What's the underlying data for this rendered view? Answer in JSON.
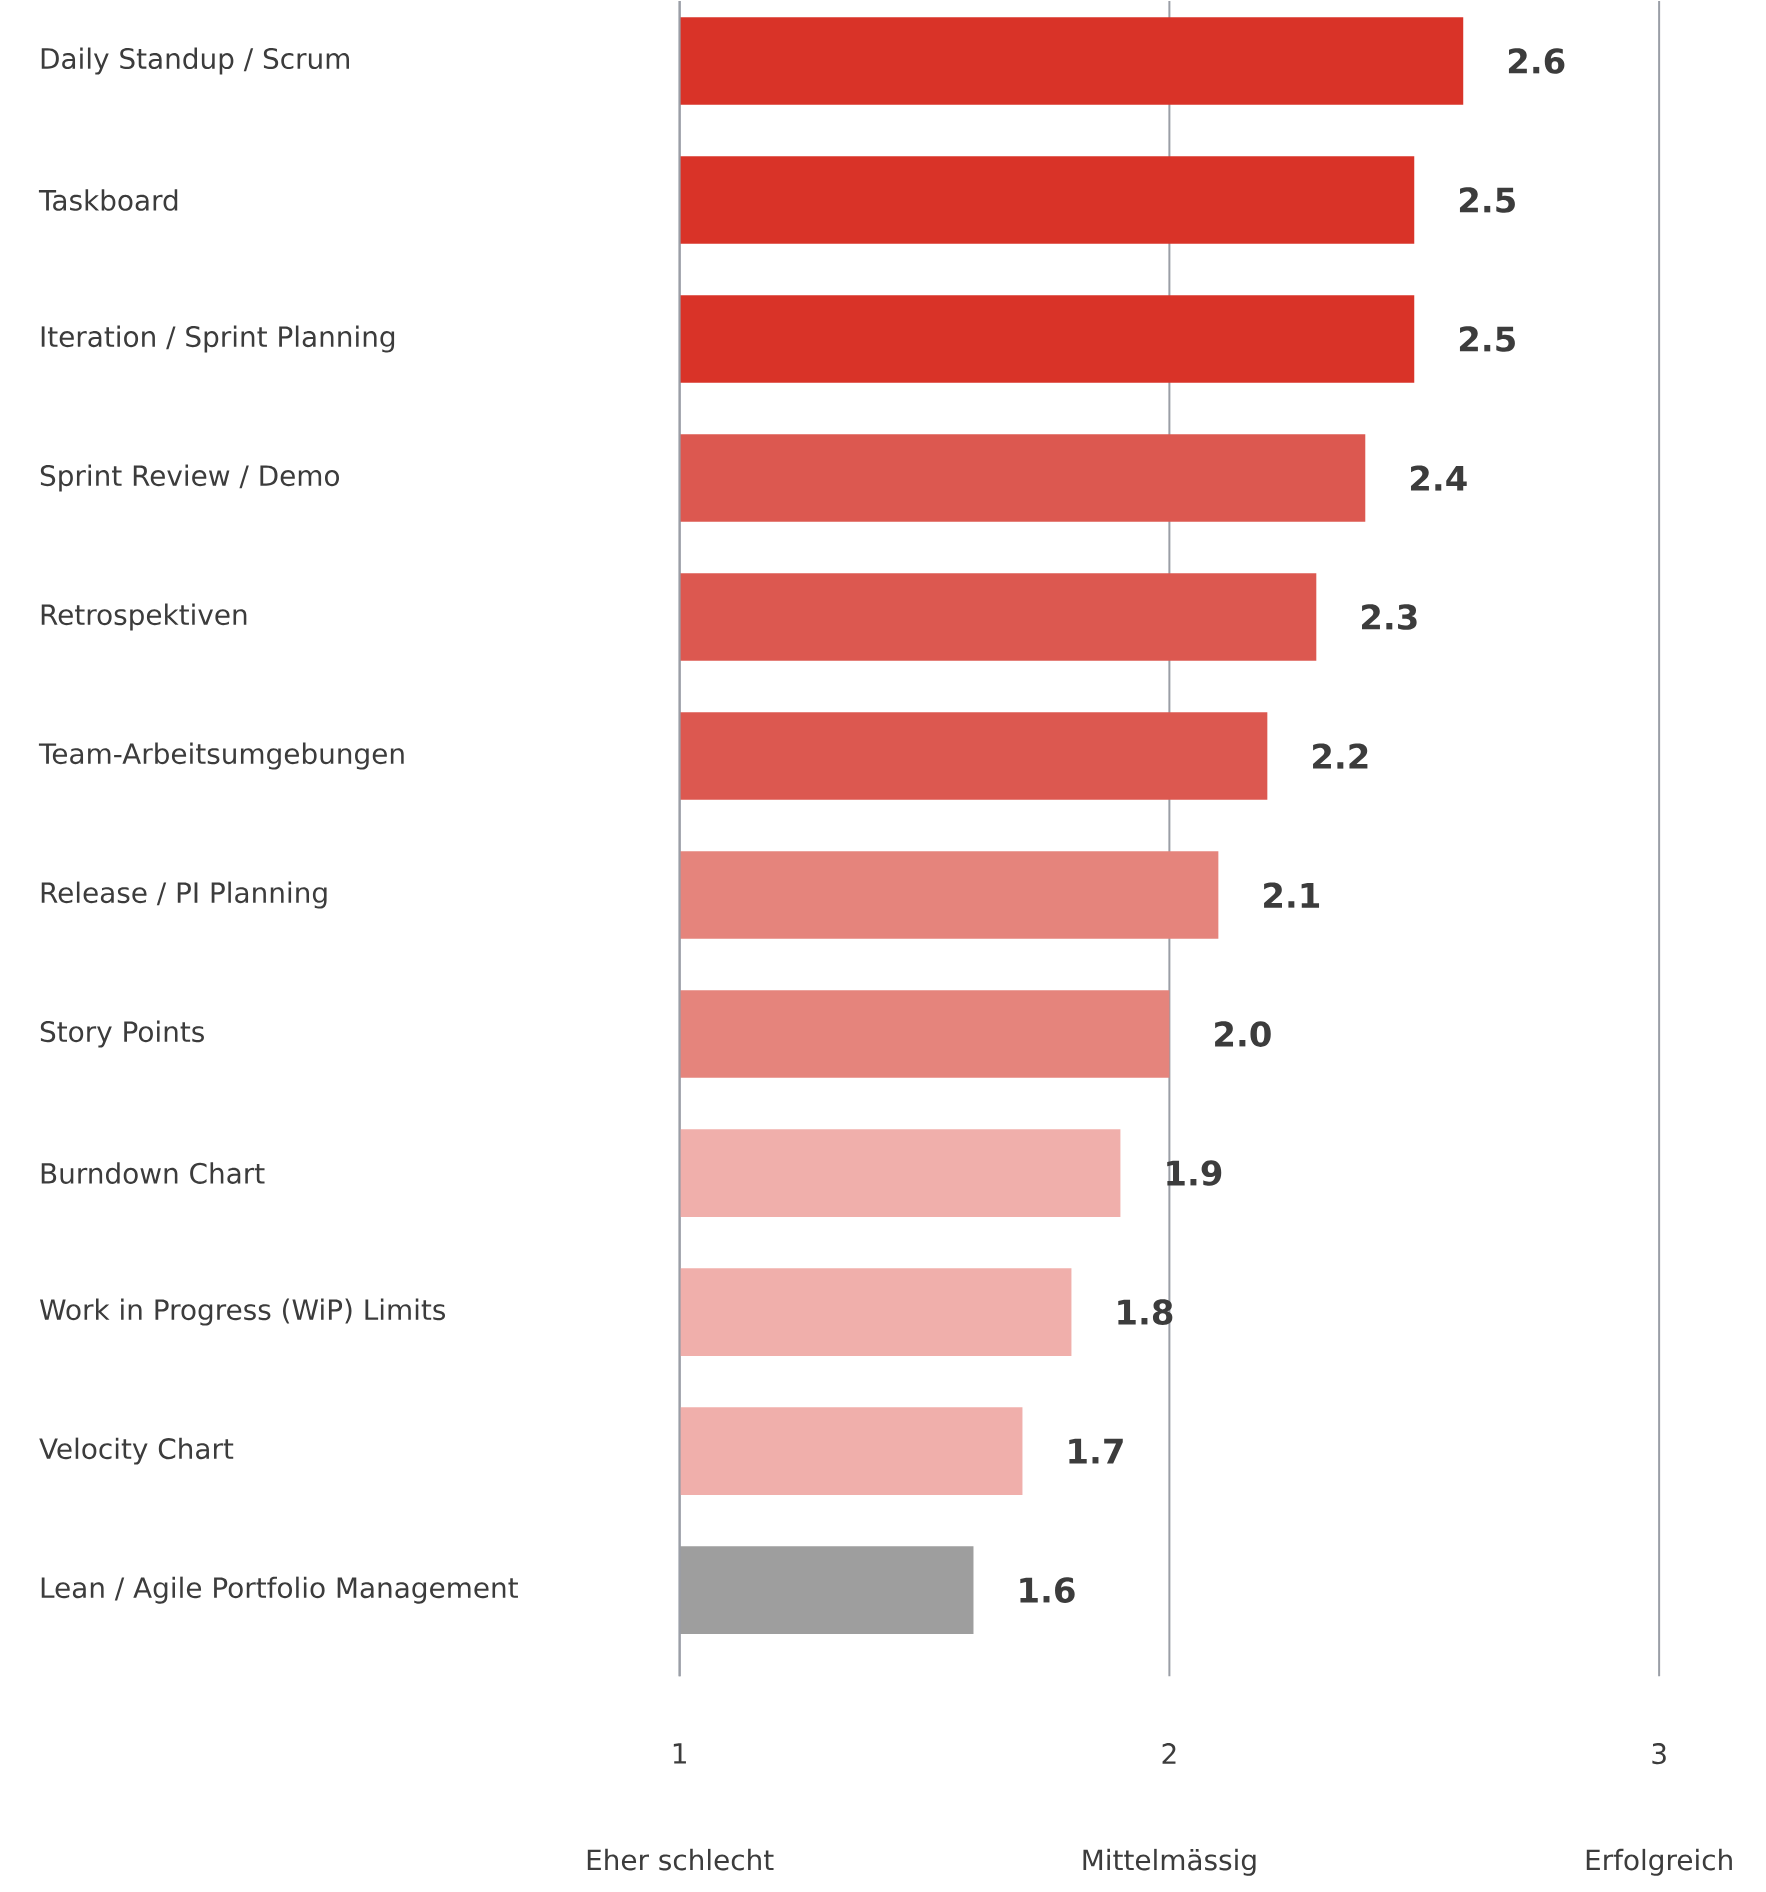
{
  "chart_data": {
    "type": "bar",
    "orientation": "horizontal",
    "categories": [
      "Daily Standup / Scrum",
      "Taskboard",
      "Iteration / Sprint Planning",
      "Sprint Review / Demo",
      "Retrospektiven",
      "Team-Arbeitsumgebungen",
      "Release / PI Planning",
      "Story Points",
      "Burndown Chart",
      "Work in Progress (WiP) Limits",
      "Velocity Chart",
      "Lean / Agile Portfolio Management"
    ],
    "values": [
      2.6,
      2.5,
      2.5,
      2.4,
      2.3,
      2.2,
      2.1,
      2.0,
      1.9,
      1.8,
      1.7,
      1.6
    ],
    "value_labels": [
      "2.6",
      "2.5",
      "2.5",
      "2.4",
      "2.3",
      "2.2",
      "2.1",
      "2.0",
      "1.9",
      "1.8",
      "1.7",
      "1.6"
    ],
    "colors": [
      "#d93328",
      "#d93328",
      "#d93328",
      "#dc5850",
      "#dc5850",
      "#dc5850",
      "#e5847c",
      "#e5847c",
      "#f0afab",
      "#f0afab",
      "#f0afab",
      "#9e9e9e"
    ],
    "xlim": [
      1,
      3
    ],
    "xticks": [
      1,
      2,
      3
    ],
    "grid": "x",
    "annotations": [
      "Eher schlecht",
      "Mittelmässig",
      "Erfolgreich"
    ]
  }
}
